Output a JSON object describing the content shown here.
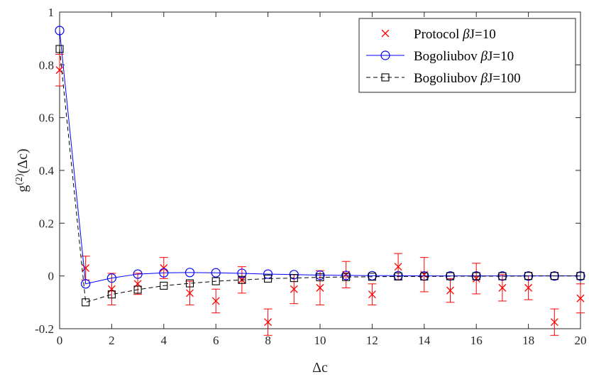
{
  "chart_data": {
    "type": "line",
    "title": "",
    "xlabel": "Δc",
    "ylabel": "g",
    "ylabel_superscript": "(2)",
    "ylabel_suffix": "(Δc)",
    "xlim": [
      0,
      20
    ],
    "ylim": [
      -0.2,
      1
    ],
    "xticks": [
      0,
      2,
      4,
      6,
      8,
      10,
      12,
      14,
      16,
      18,
      20
    ],
    "xtick_labels": [
      "0",
      "2",
      "4",
      "6",
      "8",
      "10",
      "12",
      "14",
      "16",
      "18",
      "20"
    ],
    "yticks": [
      -0.2,
      0,
      0.2,
      0.4,
      0.6,
      0.8,
      1
    ],
    "ytick_labels": [
      "-0.2",
      "0",
      "0.2",
      "0.4",
      "0.6",
      "0.8",
      "1"
    ],
    "grid": false,
    "legend_position": "top-right",
    "series": [
      {
        "name": "Protocol βJ=10",
        "legend_prefix": "Protocol ",
        "legend_beta": "β",
        "legend_suffix": "J=10",
        "style": "marker-errorbar",
        "marker": "x",
        "color": "#ff0000",
        "x": [
          0,
          1,
          2,
          3,
          4,
          5,
          6,
          7,
          8,
          9,
          10,
          11,
          12,
          13,
          14,
          15,
          16,
          17,
          18,
          19,
          20
        ],
        "values": [
          0.78,
          0.03,
          -0.05,
          -0.03,
          0.03,
          -0.065,
          -0.095,
          -0.015,
          -0.175,
          -0.05,
          -0.045,
          0.005,
          -0.07,
          0.035,
          0.005,
          -0.055,
          -0.01,
          -0.045,
          -0.045,
          -0.175,
          -0.085
        ],
        "errors": [
          0.06,
          0.045,
          0.06,
          0.04,
          0.04,
          0.045,
          0.045,
          0.05,
          0.05,
          0.055,
          0.065,
          0.05,
          0.04,
          0.05,
          0.065,
          0.045,
          0.058,
          0.05,
          0.045,
          0.05,
          0.055
        ]
      },
      {
        "name": "Bogoliubov βJ=10",
        "legend_prefix": "Bogoliubov ",
        "legend_beta": "β",
        "legend_suffix": "J=10",
        "style": "solid-line",
        "marker": "circle",
        "color": "#0000ff",
        "x": [
          0,
          1,
          2,
          3,
          4,
          5,
          6,
          7,
          8,
          9,
          10,
          11,
          12,
          13,
          14,
          15,
          16,
          17,
          18,
          19,
          20
        ],
        "values": [
          0.93,
          -0.03,
          -0.008,
          0.007,
          0.012,
          0.013,
          0.012,
          0.01,
          0.007,
          0.005,
          0.003,
          0.002,
          0.001,
          0.001,
          0.0,
          0.0,
          0.0,
          0.0,
          0.0,
          0.0,
          0.0
        ]
      },
      {
        "name": "Bogoliubov βJ=100",
        "legend_prefix": "Bogoliubov ",
        "legend_beta": "β",
        "legend_suffix": "J=100",
        "style": "dashed-line",
        "marker": "square",
        "color": "#000000",
        "x": [
          0,
          1,
          2,
          3,
          4,
          5,
          6,
          7,
          8,
          9,
          10,
          11,
          12,
          13,
          14,
          15,
          16,
          17,
          18,
          19,
          20
        ],
        "values": [
          0.86,
          -0.1,
          -0.07,
          -0.052,
          -0.037,
          -0.028,
          -0.02,
          -0.015,
          -0.01,
          -0.008,
          -0.005,
          -0.004,
          -0.003,
          -0.002,
          -0.002,
          -0.001,
          -0.001,
          -0.001,
          0.0,
          0.0,
          0.0
        ]
      }
    ]
  }
}
